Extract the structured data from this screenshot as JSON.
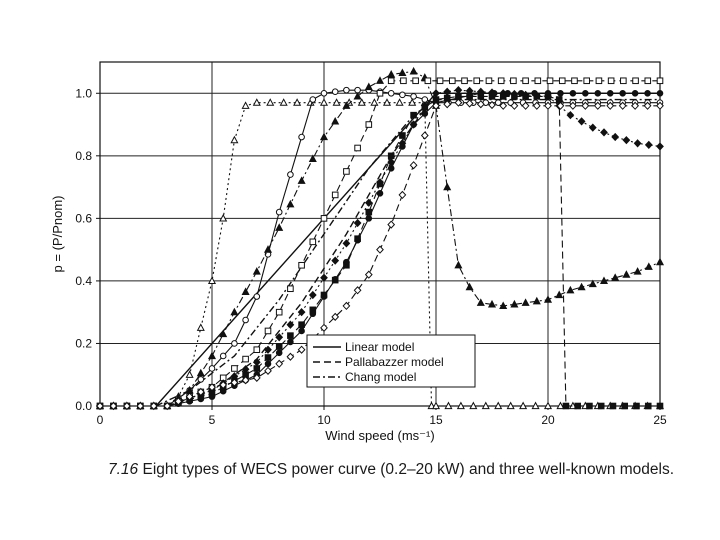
{
  "caption": {
    "figure_number": "7.16",
    "text": "Eight types of WECS power curve (0.2–20 kW) and three well-known models."
  },
  "chart_data": {
    "type": "line",
    "title": "",
    "xlabel": "Wind speed (ms⁻¹)",
    "ylabel": "p = (P/Pnom)",
    "xlim": [
      0,
      25
    ],
    "ylim": [
      0,
      1.1
    ],
    "xticks": [
      "0",
      "5",
      "10",
      "15",
      "20",
      "25"
    ],
    "yticks": [
      "0.0",
      "0.2",
      "0.4",
      "0.6",
      "0.8",
      "1.0"
    ],
    "grid": true,
    "legend": {
      "placement": "bottom-center",
      "entries": [
        {
          "label": "Linear model",
          "style": "solid"
        },
        {
          "label": "Pallabazzer model",
          "style": "dashed"
        },
        {
          "label": "Chang model",
          "style": "dashdot"
        }
      ]
    },
    "series": [
      {
        "name": "Linear model",
        "line": "solid",
        "marker": "none",
        "points": [
          [
            2.5,
            0
          ],
          [
            15,
            1
          ],
          [
            25,
            1
          ]
        ]
      },
      {
        "name": "Pallabazzer model",
        "line": "dashed",
        "marker": "none",
        "points": [
          [
            3,
            0
          ],
          [
            5,
            0.05
          ],
          [
            7,
            0.15
          ],
          [
            9,
            0.33
          ],
          [
            11,
            0.55
          ],
          [
            13,
            0.8
          ],
          [
            15,
            1
          ],
          [
            25,
            1
          ]
        ]
      },
      {
        "name": "Chang model",
        "line": "dashdot",
        "marker": "none",
        "points": [
          [
            2.5,
            0
          ],
          [
            4,
            0.05
          ],
          [
            6,
            0.16
          ],
          [
            8,
            0.34
          ],
          [
            10,
            0.55
          ],
          [
            12,
            0.76
          ],
          [
            14,
            0.93
          ],
          [
            15,
            0.98
          ],
          [
            25,
            0.98
          ]
        ]
      },
      {
        "name": "Open triangles",
        "line": "dotted",
        "marker": "triangle-open",
        "points": [
          [
            0,
            0
          ],
          [
            3,
            0
          ],
          [
            3.5,
            0.03
          ],
          [
            4,
            0.1
          ],
          [
            4.5,
            0.25
          ],
          [
            5,
            0.4
          ],
          [
            5.5,
            0.6
          ],
          [
            6,
            0.85
          ],
          [
            6.5,
            0.96
          ],
          [
            7,
            0.97
          ],
          [
            10,
            0.97
          ],
          [
            14.5,
            0.97
          ],
          [
            14.8,
            0
          ],
          [
            15,
            0
          ],
          [
            25,
            0
          ]
        ]
      },
      {
        "name": "Open circles",
        "line": "solid",
        "marker": "circle-open",
        "points": [
          [
            0,
            0
          ],
          [
            3,
            0
          ],
          [
            4,
            0.05
          ],
          [
            5,
            0.12
          ],
          [
            6,
            0.2
          ],
          [
            7,
            0.35
          ],
          [
            8,
            0.62
          ],
          [
            9,
            0.86
          ],
          [
            9.5,
            0.98
          ],
          [
            10,
            1
          ],
          [
            11,
            1.01
          ],
          [
            12,
            1.01
          ],
          [
            13,
            1.0
          ],
          [
            14,
            0.99
          ],
          [
            15,
            0.97
          ],
          [
            25,
            0.97
          ]
        ]
      },
      {
        "name": "Filled triangles",
        "line": "dashdot",
        "marker": "triangle-filled",
        "points": [
          [
            0,
            0
          ],
          [
            3,
            0
          ],
          [
            4,
            0.05
          ],
          [
            5,
            0.16
          ],
          [
            6,
            0.3
          ],
          [
            7,
            0.43
          ],
          [
            8,
            0.57
          ],
          [
            9,
            0.72
          ],
          [
            10,
            0.86
          ],
          [
            11,
            0.96
          ],
          [
            12,
            1.02
          ],
          [
            13,
            1.06
          ],
          [
            14,
            1.07
          ],
          [
            14.5,
            1.05
          ],
          [
            15,
            0.96
          ],
          [
            15.5,
            0.7
          ],
          [
            16,
            0.45
          ],
          [
            16.5,
            0.38
          ],
          [
            17,
            0.33
          ],
          [
            18,
            0.32
          ],
          [
            19,
            0.33
          ],
          [
            20,
            0.34
          ],
          [
            21,
            0.37
          ],
          [
            22,
            0.39
          ],
          [
            23,
            0.41
          ],
          [
            24,
            0.43
          ],
          [
            25,
            0.46
          ]
        ]
      },
      {
        "name": "Open squares",
        "line": "dashed",
        "marker": "square-open",
        "points": [
          [
            0,
            0
          ],
          [
            3,
            0
          ],
          [
            5,
            0.06
          ],
          [
            7,
            0.18
          ],
          [
            8,
            0.3
          ],
          [
            9,
            0.45
          ],
          [
            10,
            0.6
          ],
          [
            11,
            0.75
          ],
          [
            12,
            0.9
          ],
          [
            12.5,
            1.0
          ],
          [
            13,
            1.04
          ],
          [
            25,
            1.04
          ]
        ]
      },
      {
        "name": "Filled diamonds",
        "line": "dotted",
        "marker": "diamond-filled",
        "points": [
          [
            0,
            0
          ],
          [
            3,
            0
          ],
          [
            5,
            0.05
          ],
          [
            7,
            0.14
          ],
          [
            9,
            0.3
          ],
          [
            11,
            0.52
          ],
          [
            13,
            0.78
          ],
          [
            14.5,
            0.96
          ],
          [
            15,
            1.0
          ],
          [
            16,
            1.01
          ],
          [
            18,
            1.0
          ],
          [
            20,
            0.99
          ],
          [
            21,
            0.93
          ],
          [
            22,
            0.89
          ],
          [
            23,
            0.86
          ],
          [
            24,
            0.84
          ],
          [
            25,
            0.83
          ]
        ]
      },
      {
        "name": "Filled squares",
        "line": "dashed",
        "marker": "square-filled",
        "points": [
          [
            0,
            0
          ],
          [
            3,
            0
          ],
          [
            5,
            0.04
          ],
          [
            7,
            0.12
          ],
          [
            9,
            0.26
          ],
          [
            11,
            0.45
          ],
          [
            12,
            0.62
          ],
          [
            13,
            0.8
          ],
          [
            14,
            0.93
          ],
          [
            15,
            0.98
          ],
          [
            16,
            0.99
          ],
          [
            18,
            0.99
          ],
          [
            20,
            0.99
          ],
          [
            20.5,
            0.98
          ],
          [
            20.8,
            0
          ],
          [
            25,
            0
          ]
        ]
      },
      {
        "name": "Filled circles",
        "line": "solid",
        "marker": "circle-filled",
        "points": [
          [
            0,
            0
          ],
          [
            3,
            0
          ],
          [
            5,
            0.03
          ],
          [
            7,
            0.1
          ],
          [
            9,
            0.24
          ],
          [
            11,
            0.46
          ],
          [
            12,
            0.6
          ],
          [
            13,
            0.76
          ],
          [
            14,
            0.9
          ],
          [
            15,
            0.97
          ],
          [
            17,
            1.0
          ],
          [
            20,
            1.0
          ],
          [
            25,
            1.0
          ]
        ]
      },
      {
        "name": "Open diamonds",
        "line": "dashed",
        "marker": "diamond-open",
        "points": [
          [
            0,
            0
          ],
          [
            3,
            0
          ],
          [
            5,
            0.06
          ],
          [
            7,
            0.09
          ],
          [
            9,
            0.18
          ],
          [
            11,
            0.32
          ],
          [
            12,
            0.42
          ],
          [
            13,
            0.58
          ],
          [
            14,
            0.77
          ],
          [
            15,
            0.96
          ],
          [
            16,
            0.97
          ],
          [
            18,
            0.96
          ],
          [
            20,
            0.96
          ],
          [
            25,
            0.96
          ]
        ]
      }
    ]
  }
}
